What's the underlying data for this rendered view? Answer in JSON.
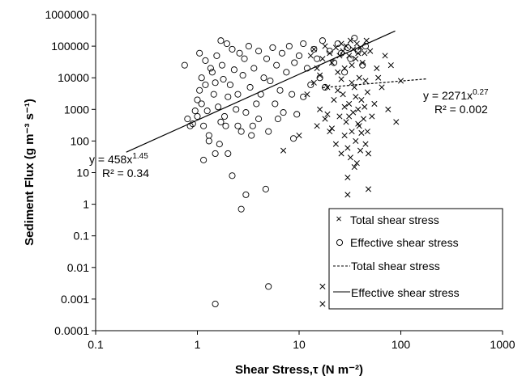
{
  "chart_data": {
    "type": "scatter",
    "xlabel": "Shear Stress,τ (N m⁻²)",
    "ylabel": "Sediment Flux (g m⁻³ s⁻¹)",
    "x_scale": "log",
    "y_scale": "log",
    "xlim": [
      0.1,
      1000
    ],
    "ylim": [
      0.0001,
      1000000
    ],
    "x_ticks": [
      "0.1",
      "1",
      "10",
      "100",
      "1000"
    ],
    "y_ticks": [
      "0.0001",
      "0.001",
      "0.01",
      "0.1",
      "1",
      "10",
      "100",
      "1000",
      "10000",
      "100000",
      "1000000"
    ],
    "grid": false,
    "legend_position": "bottom-right",
    "legend": [
      {
        "label": "Total shear stress",
        "marker": "x"
      },
      {
        "label": "Effective shear stress",
        "marker": "o"
      },
      {
        "label": "Total shear stress",
        "line": "dashed"
      },
      {
        "label": "Effective shear stress",
        "line": "solid"
      }
    ],
    "fits": [
      {
        "series": "Total shear stress",
        "line": "dashed",
        "a": 2271,
        "b": 0.27,
        "eq": "y = 2271x",
        "exp": "0.27",
        "r2": "R² = 0.002",
        "x_range": [
          17,
          180
        ]
      },
      {
        "series": "Effective shear stress",
        "line": "solid",
        "a": 458,
        "b": 1.45,
        "eq": "y = 458x",
        "exp": "1.45",
        "r2": "R² = 0.34",
        "x_range": [
          0.2,
          88
        ]
      }
    ],
    "series": [
      {
        "name": "Effective shear stress",
        "marker": "o",
        "points": [
          [
            0.75,
            25000
          ],
          [
            0.8,
            500
          ],
          [
            0.85,
            300
          ],
          [
            0.95,
            900
          ],
          [
            1.0,
            2000
          ],
          [
            1.0,
            600
          ],
          [
            1.05,
            4000
          ],
          [
            1.1,
            1500
          ],
          [
            1.1,
            10000
          ],
          [
            1.15,
            300
          ],
          [
            1.2,
            6000
          ],
          [
            1.2,
            35000
          ],
          [
            1.25,
            900
          ],
          [
            1.3,
            100
          ],
          [
            1.3,
            150
          ],
          [
            1.35,
            20000
          ],
          [
            1.4,
            15000
          ],
          [
            1.45,
            3000
          ],
          [
            1.5,
            7000
          ],
          [
            1.5,
            40
          ],
          [
            1.55,
            50000
          ],
          [
            1.6,
            1200
          ],
          [
            1.65,
            80
          ],
          [
            1.7,
            400
          ],
          [
            1.75,
            25000
          ],
          [
            1.8,
            9000
          ],
          [
            1.85,
            600
          ],
          [
            1.9,
            300
          ],
          [
            1.95,
            120000
          ],
          [
            2.0,
            2500
          ],
          [
            2.0,
            40
          ],
          [
            2.1,
            6000
          ],
          [
            2.2,
            80000
          ],
          [
            2.3,
            18000
          ],
          [
            2.4,
            1000
          ],
          [
            2.5,
            3000
          ],
          [
            2.5,
            300
          ],
          [
            2.6,
            60000
          ],
          [
            2.7,
            200
          ],
          [
            2.8,
            12000
          ],
          [
            2.9,
            40000
          ],
          [
            3.0,
            2
          ],
          [
            3.0,
            800
          ],
          [
            3.2,
            100000
          ],
          [
            3.3,
            5000
          ],
          [
            3.5,
            300
          ],
          [
            3.6,
            20000
          ],
          [
            3.8,
            1500
          ],
          [
            4.0,
            70000
          ],
          [
            4.0,
            500
          ],
          [
            4.2,
            3000
          ],
          [
            4.5,
            10000
          ],
          [
            4.7,
            3
          ],
          [
            4.8,
            40000
          ],
          [
            5.0,
            200
          ],
          [
            5.0,
            0.0025
          ],
          [
            5.2,
            8000
          ],
          [
            5.5,
            90000
          ],
          [
            5.8,
            1500
          ],
          [
            6.0,
            25000
          ],
          [
            6.5,
            4000
          ],
          [
            6.8,
            60000
          ],
          [
            7.0,
            800
          ],
          [
            7.5,
            15000
          ],
          [
            8.0,
            100000
          ],
          [
            8.5,
            3000
          ],
          [
            9.0,
            30000
          ],
          [
            9.5,
            700
          ],
          [
            10,
            50000
          ],
          [
            11,
            2500
          ],
          [
            11,
            120000
          ],
          [
            12,
            20000
          ],
          [
            13,
            6000
          ],
          [
            14,
            80000
          ],
          [
            15,
            40000
          ],
          [
            16,
            10000
          ],
          [
            17,
            150000
          ],
          [
            18,
            5000
          ],
          [
            20,
            70000
          ],
          [
            22,
            30000
          ],
          [
            24,
            120000
          ],
          [
            26,
            60000
          ],
          [
            28,
            15000
          ],
          [
            30,
            90000
          ],
          [
            32,
            40000
          ],
          [
            35,
            180000
          ],
          [
            38,
            70000
          ],
          [
            42,
            25000
          ],
          [
            45,
            100000
          ],
          [
            1.5,
            0.0007
          ],
          [
            2.2,
            8
          ],
          [
            1.15,
            25
          ],
          [
            1.05,
            60000
          ],
          [
            0.9,
            350
          ],
          [
            1.7,
            150000
          ],
          [
            3.4,
            150
          ],
          [
            6.2,
            500
          ],
          [
            8.8,
            120
          ],
          [
            2.7,
            0.7
          ]
        ]
      },
      {
        "name": "Total shear stress",
        "marker": "x",
        "points": [
          [
            7,
            50
          ],
          [
            10,
            150
          ],
          [
            12,
            3000
          ],
          [
            13,
            50000
          ],
          [
            14,
            80000
          ],
          [
            15,
            300
          ],
          [
            15,
            20000
          ],
          [
            16,
            1000
          ],
          [
            17,
            40000
          ],
          [
            17,
            0.0025
          ],
          [
            17,
            0.0007
          ],
          [
            18,
            100000
          ],
          [
            18,
            500
          ],
          [
            19,
            5000
          ],
          [
            20,
            60000
          ],
          [
            20,
            200
          ],
          [
            21,
            30000
          ],
          [
            22,
            2000
          ],
          [
            23,
            90000
          ],
          [
            23,
            80
          ],
          [
            24,
            15000
          ],
          [
            25,
            600
          ],
          [
            25,
            50000
          ],
          [
            26,
            120000
          ],
          [
            26,
            40
          ],
          [
            27,
            3000
          ],
          [
            27,
            70000
          ],
          [
            28,
            150
          ],
          [
            28,
            20000
          ],
          [
            29,
            400
          ],
          [
            29,
            100000
          ],
          [
            30,
            60
          ],
          [
            30,
            7
          ],
          [
            30,
            2
          ],
          [
            31,
            50000
          ],
          [
            31,
            1500
          ],
          [
            32,
            150000
          ],
          [
            32,
            30
          ],
          [
            33,
            25000
          ],
          [
            33,
            200
          ],
          [
            34,
            80000
          ],
          [
            34,
            800
          ],
          [
            35,
            5000
          ],
          [
            35,
            15
          ],
          [
            36,
            40000
          ],
          [
            36,
            100
          ],
          [
            37,
            120000
          ],
          [
            37,
            20
          ],
          [
            38,
            1000
          ],
          [
            38,
            60000
          ],
          [
            39,
            300
          ],
          [
            39,
            10000
          ],
          [
            40,
            90000
          ],
          [
            40,
            50
          ],
          [
            41,
            2000
          ],
          [
            42,
            30000
          ],
          [
            43,
            500
          ],
          [
            44,
            60000
          ],
          [
            45,
            80
          ],
          [
            45,
            8000
          ],
          [
            46,
            150000
          ],
          [
            47,
            200
          ],
          [
            48,
            3
          ],
          [
            48,
            40
          ],
          [
            50,
            70000
          ],
          [
            55,
            1500
          ],
          [
            60,
            10000
          ],
          [
            65,
            5000
          ],
          [
            70,
            50000
          ],
          [
            75,
            1000
          ],
          [
            80,
            25000
          ],
          [
            90,
            400
          ],
          [
            100,
            8000
          ],
          [
            14,
            7000
          ],
          [
            16,
            12000
          ],
          [
            19,
            700
          ],
          [
            21,
            250
          ],
          [
            24,
            4000
          ],
          [
            26,
            9000
          ],
          [
            28,
            1200
          ],
          [
            31,
            600
          ],
          [
            33,
            7000
          ],
          [
            36,
            2500
          ],
          [
            38,
            350
          ],
          [
            41,
            180
          ],
          [
            44,
            1200
          ],
          [
            47,
            3500
          ],
          [
            52,
            600
          ],
          [
            58,
            20000
          ]
        ]
      }
    ]
  }
}
